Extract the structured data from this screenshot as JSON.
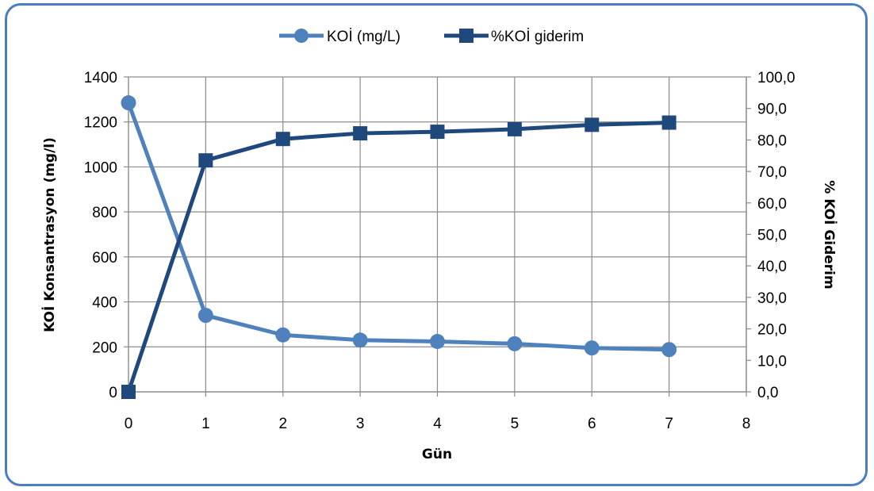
{
  "chart_data": {
    "type": "line",
    "x": [
      0,
      1,
      2,
      3,
      4,
      5,
      6,
      7
    ],
    "series": [
      {
        "name": "KOİ (mg/L)",
        "axis": "left",
        "marker": "circle",
        "color": "#4f81bd",
        "values": [
          1285,
          340,
          253,
          230,
          224,
          214,
          195,
          188
        ]
      },
      {
        "name": "%KOİ giderim",
        "axis": "right",
        "marker": "square",
        "color": "#1f497d",
        "values": [
          0.0,
          73.5,
          80.3,
          82.1,
          82.6,
          83.4,
          84.8,
          85.5
        ]
      }
    ],
    "xlabel": "Gün",
    "ylabel_left": "KOİ Konsantrasyon (mg/l)",
    "ylabel_right": "% KOİ Giderim",
    "xlim": [
      0,
      8
    ],
    "ylim_left": [
      0,
      1400
    ],
    "ylim_right": [
      0,
      100
    ],
    "x_ticks": [
      "0",
      "1",
      "2",
      "3",
      "4",
      "5",
      "6",
      "7",
      "8"
    ],
    "y_ticks_left": [
      "0",
      "200",
      "400",
      "600",
      "800",
      "1000",
      "1200",
      "1400"
    ],
    "y_ticks_right": [
      "0,0",
      "10,0",
      "20,0",
      "30,0",
      "40,0",
      "50,0",
      "60,0",
      "70,0",
      "80,0",
      "90,0",
      "100,0"
    ],
    "grid": true,
    "legend_position": "top"
  },
  "colors": {
    "frame": "#4a7dc4",
    "grid": "#8c8c8c"
  }
}
